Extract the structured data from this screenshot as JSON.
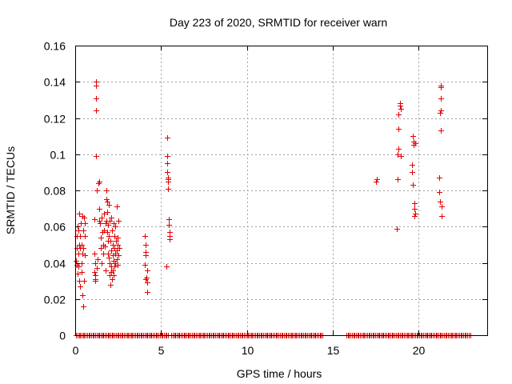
{
  "chart_data": {
    "type": "scatter",
    "title": "Day 223 of 2020, SRMTID for receiver warn",
    "xlabel": "GPS time / hours",
    "ylabel": "SRMTID / TECUs",
    "xlim": [
      0,
      24
    ],
    "ylim": [
      0,
      0.16
    ],
    "x_ticks": [
      0,
      5,
      10,
      15,
      20
    ],
    "x_tick_labels": [
      "0",
      "5",
      "10",
      "15",
      "20"
    ],
    "y_ticks": [
      0,
      0.02,
      0.04,
      0.06,
      0.08,
      0.1,
      0.12,
      0.14,
      0.16
    ],
    "y_tick_labels": [
      "0",
      "0.02",
      "0.04",
      "0.06",
      "0.08",
      "0.1",
      "0.12",
      "0.14",
      "0.16"
    ],
    "grid": true,
    "marker": "plus",
    "color": "#e00000",
    "series": [
      {
        "name": "SRMTID",
        "points": [
          [
            0.05,
            0.041
          ],
          [
            0.07,
            0.039
          ],
          [
            0.1,
            0.055
          ],
          [
            0.1,
            0.048
          ],
          [
            0.12,
            0.06
          ],
          [
            0.15,
            0.034
          ],
          [
            0.18,
            0.045
          ],
          [
            0.2,
            0.058
          ],
          [
            0.2,
            0.038
          ],
          [
            0.22,
            0.05
          ],
          [
            0.25,
            0.067
          ],
          [
            0.25,
            0.03
          ],
          [
            0.28,
            0.055
          ],
          [
            0.3,
            0.048
          ],
          [
            0.3,
            0.027
          ],
          [
            0.32,
            0.062
          ],
          [
            0.35,
            0.04
          ],
          [
            0.35,
            0.035
          ],
          [
            0.38,
            0.05
          ],
          [
            0.4,
            0.066
          ],
          [
            0.4,
            0.045
          ],
          [
            0.42,
            0.022
          ],
          [
            0.45,
            0.016
          ],
          [
            0.45,
            0.058
          ],
          [
            0.48,
            0.048
          ],
          [
            0.5,
            0.065
          ],
          [
            0.5,
            0.03
          ],
          [
            0.55,
            0.062
          ],
          [
            0.55,
            0.044
          ],
          [
            0.58,
            0.055
          ],
          [
            1.1,
            0.064
          ],
          [
            1.1,
            0.045
          ],
          [
            1.12,
            0.035
          ],
          [
            1.15,
            0.031
          ],
          [
            1.15,
            0.03
          ],
          [
            1.18,
            0.04
          ],
          [
            1.18,
            0.033
          ],
          [
            1.2,
            0.14
          ],
          [
            1.2,
            0.138
          ],
          [
            1.22,
            0.131
          ],
          [
            1.22,
            0.124
          ],
          [
            1.22,
            0.099
          ],
          [
            1.25,
            0.08
          ],
          [
            1.25,
            0.037
          ],
          [
            1.3,
            0.042
          ],
          [
            1.35,
            0.084
          ],
          [
            1.38,
            0.085
          ],
          [
            1.4,
            0.063
          ],
          [
            1.42,
            0.07
          ],
          [
            1.45,
            0.062
          ],
          [
            1.48,
            0.054
          ],
          [
            1.5,
            0.048
          ],
          [
            1.55,
            0.065
          ],
          [
            1.55,
            0.04
          ],
          [
            1.6,
            0.057
          ],
          [
            1.62,
            0.05
          ],
          [
            1.65,
            0.045
          ],
          [
            1.68,
            0.067
          ],
          [
            1.7,
            0.058
          ],
          [
            1.72,
            0.049
          ],
          [
            1.75,
            0.062
          ],
          [
            1.78,
            0.036
          ],
          [
            1.8,
            0.08
          ],
          [
            1.8,
            0.063
          ],
          [
            1.82,
            0.075
          ],
          [
            1.85,
            0.074
          ],
          [
            1.85,
            0.057
          ],
          [
            1.88,
            0.068
          ],
          [
            1.9,
            0.061
          ],
          [
            1.9,
            0.052
          ],
          [
            1.92,
            0.045
          ],
          [
            1.95,
            0.072
          ],
          [
            1.95,
            0.055
          ],
          [
            1.98,
            0.043
          ],
          [
            2.0,
            0.04
          ],
          [
            2.0,
            0.063
          ],
          [
            2.02,
            0.033
          ],
          [
            2.05,
            0.028
          ],
          [
            2.05,
            0.052
          ],
          [
            2.08,
            0.038
          ],
          [
            2.1,
            0.065
          ],
          [
            2.1,
            0.047
          ],
          [
            2.12,
            0.035
          ],
          [
            2.15,
            0.031
          ],
          [
            2.15,
            0.058
          ],
          [
            2.18,
            0.044
          ],
          [
            2.2,
            0.05
          ],
          [
            2.2,
            0.036
          ],
          [
            2.22,
            0.062
          ],
          [
            2.25,
            0.041
          ],
          [
            2.25,
            0.033
          ],
          [
            2.28,
            0.055
          ],
          [
            2.3,
            0.048
          ],
          [
            2.3,
            0.038
          ],
          [
            2.32,
            0.04
          ],
          [
            2.35,
            0.06
          ],
          [
            2.35,
            0.045
          ],
          [
            2.38,
            0.052
          ],
          [
            2.4,
            0.042
          ],
          [
            2.4,
            0.071
          ],
          [
            2.42,
            0.047
          ],
          [
            2.45,
            0.054
          ],
          [
            2.45,
            0.039
          ],
          [
            2.48,
            0.05
          ],
          [
            2.5,
            0.044
          ],
          [
            2.52,
            0.063
          ],
          [
            2.55,
            0.048
          ],
          [
            4.05,
            0.055
          ],
          [
            4.05,
            0.039
          ],
          [
            4.08,
            0.046
          ],
          [
            4.1,
            0.044
          ],
          [
            4.1,
            0.031
          ],
          [
            4.12,
            0.05
          ],
          [
            4.15,
            0.032
          ],
          [
            4.18,
            0.024
          ],
          [
            4.2,
            0.029
          ],
          [
            4.2,
            0.036
          ],
          [
            5.3,
            0.038
          ],
          [
            5.35,
            0.109
          ],
          [
            5.35,
            0.099
          ],
          [
            5.38,
            0.095
          ],
          [
            5.38,
            0.09
          ],
          [
            5.4,
            0.087
          ],
          [
            5.4,
            0.085
          ],
          [
            5.42,
            0.086
          ],
          [
            5.42,
            0.081
          ],
          [
            5.45,
            0.064
          ],
          [
            5.45,
            0.061
          ],
          [
            5.48,
            0.057
          ],
          [
            5.48,
            0.055
          ],
          [
            5.5,
            0.053
          ],
          [
            17.5,
            0.085
          ],
          [
            17.55,
            0.086
          ],
          [
            18.75,
            0.059
          ],
          [
            18.8,
            0.086
          ],
          [
            18.8,
            0.1
          ],
          [
            18.82,
            0.103
          ],
          [
            18.85,
            0.114
          ],
          [
            18.85,
            0.122
          ],
          [
            18.9,
            0.127
          ],
          [
            18.9,
            0.128
          ],
          [
            18.95,
            0.099
          ],
          [
            18.95,
            0.125
          ],
          [
            19.6,
            0.094
          ],
          [
            19.62,
            0.09
          ],
          [
            19.65,
            0.083
          ],
          [
            19.68,
            0.11
          ],
          [
            19.7,
            0.107
          ],
          [
            19.72,
            0.105
          ],
          [
            19.75,
            0.073
          ],
          [
            19.75,
            0.07
          ],
          [
            19.78,
            0.066
          ],
          [
            19.8,
            0.067
          ],
          [
            19.8,
            0.106
          ],
          [
            21.2,
            0.087
          ],
          [
            21.22,
            0.079
          ],
          [
            21.25,
            0.074
          ],
          [
            21.25,
            0.123
          ],
          [
            21.28,
            0.137
          ],
          [
            21.28,
            0.124
          ],
          [
            21.3,
            0.138
          ],
          [
            21.3,
            0.131
          ],
          [
            21.32,
            0.113
          ],
          [
            21.35,
            0.071
          ],
          [
            21.35,
            0.066
          ]
        ],
        "zero_intervals": [
          [
            0.05,
            5.45
          ],
          [
            5.6,
            14.4
          ],
          [
            15.8,
            23.0
          ]
        ]
      }
    ]
  }
}
